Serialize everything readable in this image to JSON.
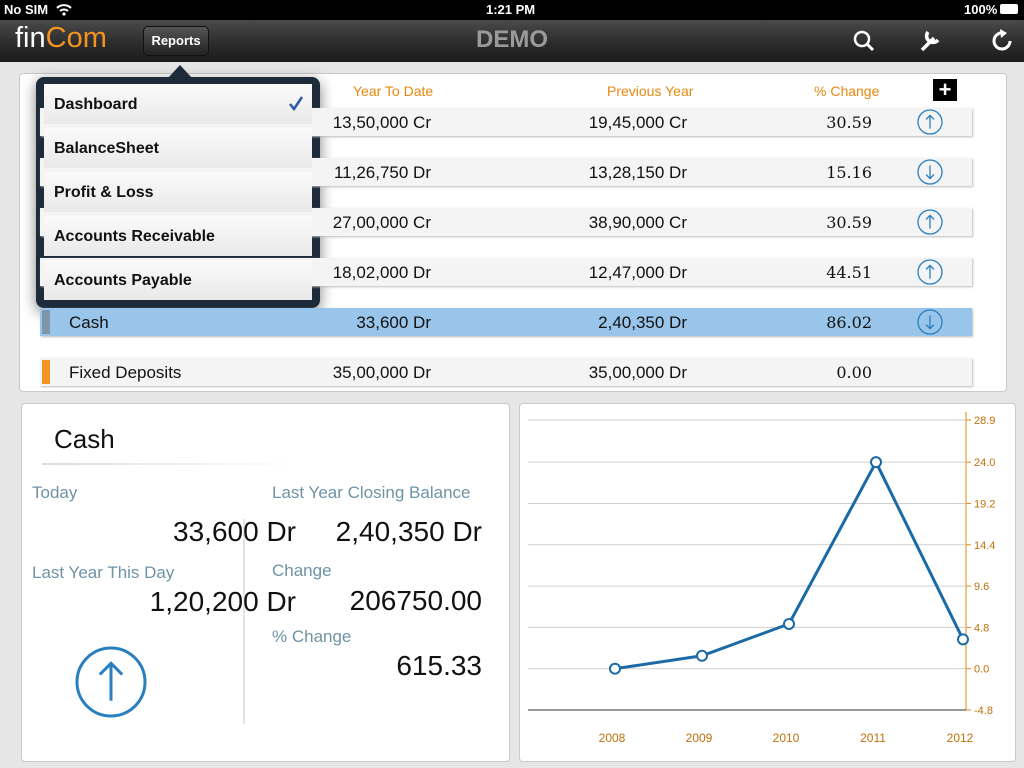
{
  "status_bar": {
    "carrier": "No SIM",
    "time": "1:21 PM",
    "battery": "100%"
  },
  "nav_bar": {
    "logo_part1": "fin",
    "logo_part2": "Com",
    "reports_button": "Reports",
    "title": "DEMO"
  },
  "menu": {
    "items": [
      {
        "label": "Dashboard",
        "selected": true
      },
      {
        "label": "BalanceSheet",
        "selected": false
      },
      {
        "label": "Profit & Loss",
        "selected": false
      },
      {
        "label": "Accounts Receivable",
        "selected": false
      },
      {
        "label": "Accounts Payable",
        "selected": false
      }
    ]
  },
  "table": {
    "headers": [
      "Year To Date",
      "Previous Year",
      "% Change"
    ],
    "rows": [
      {
        "ytd": "13,50,000 Cr",
        "prev": "19,45,000 Cr",
        "change": "30.59",
        "trend": "up"
      },
      {
        "ytd": "11,26,750 Dr",
        "prev": "13,28,150 Dr",
        "change": "15.16",
        "trend": "down"
      },
      {
        "ytd": "27,00,000 Cr",
        "prev": "38,90,000 Cr",
        "change": "30.59",
        "trend": "up"
      },
      {
        "ytd": "18,02,000 Dr",
        "prev": "12,47,000 Dr",
        "change": "44.51",
        "trend": "up"
      },
      {
        "name": "Cash",
        "ytd": "33,600 Dr",
        "prev": "2,40,350 Dr",
        "change": "86.02",
        "trend": "down",
        "highlighted": true,
        "marker_color": "#7f95a8"
      },
      {
        "name": "Fixed Deposits",
        "ytd": "35,00,000 Dr",
        "prev": "35,00,000 Dr",
        "change": "0.00",
        "trend": "none",
        "marker_color": "#f39422"
      }
    ]
  },
  "detail": {
    "title": "Cash",
    "fields": [
      {
        "label": "Today",
        "value": "33,600 Dr"
      },
      {
        "label": "Last Year This Day",
        "value": "1,20,200 Dr"
      },
      {
        "label": "Last Year Closing Balance",
        "value": "2,40,350 Dr"
      },
      {
        "label": "Change",
        "value": "206750.00"
      },
      {
        "label": "% Change",
        "value": "615.33"
      }
    ],
    "trend": "up"
  },
  "chart_data": {
    "type": "line",
    "categories": [
      "2008",
      "2009",
      "2010",
      "2011",
      "2012"
    ],
    "values": [
      0,
      1.5,
      5.2,
      24,
      3.4
    ],
    "color": "#1b6aa5",
    "ylim": [
      -4.8,
      28.9
    ],
    "yticks": [
      28.9,
      {
        "value": 24,
        "label": "24.0"
      },
      19.2,
      14.4,
      9.6,
      4.8,
      {
        "value": 0,
        "label": "0.0"
      },
      -4.8
    ],
    "grid": true
  }
}
